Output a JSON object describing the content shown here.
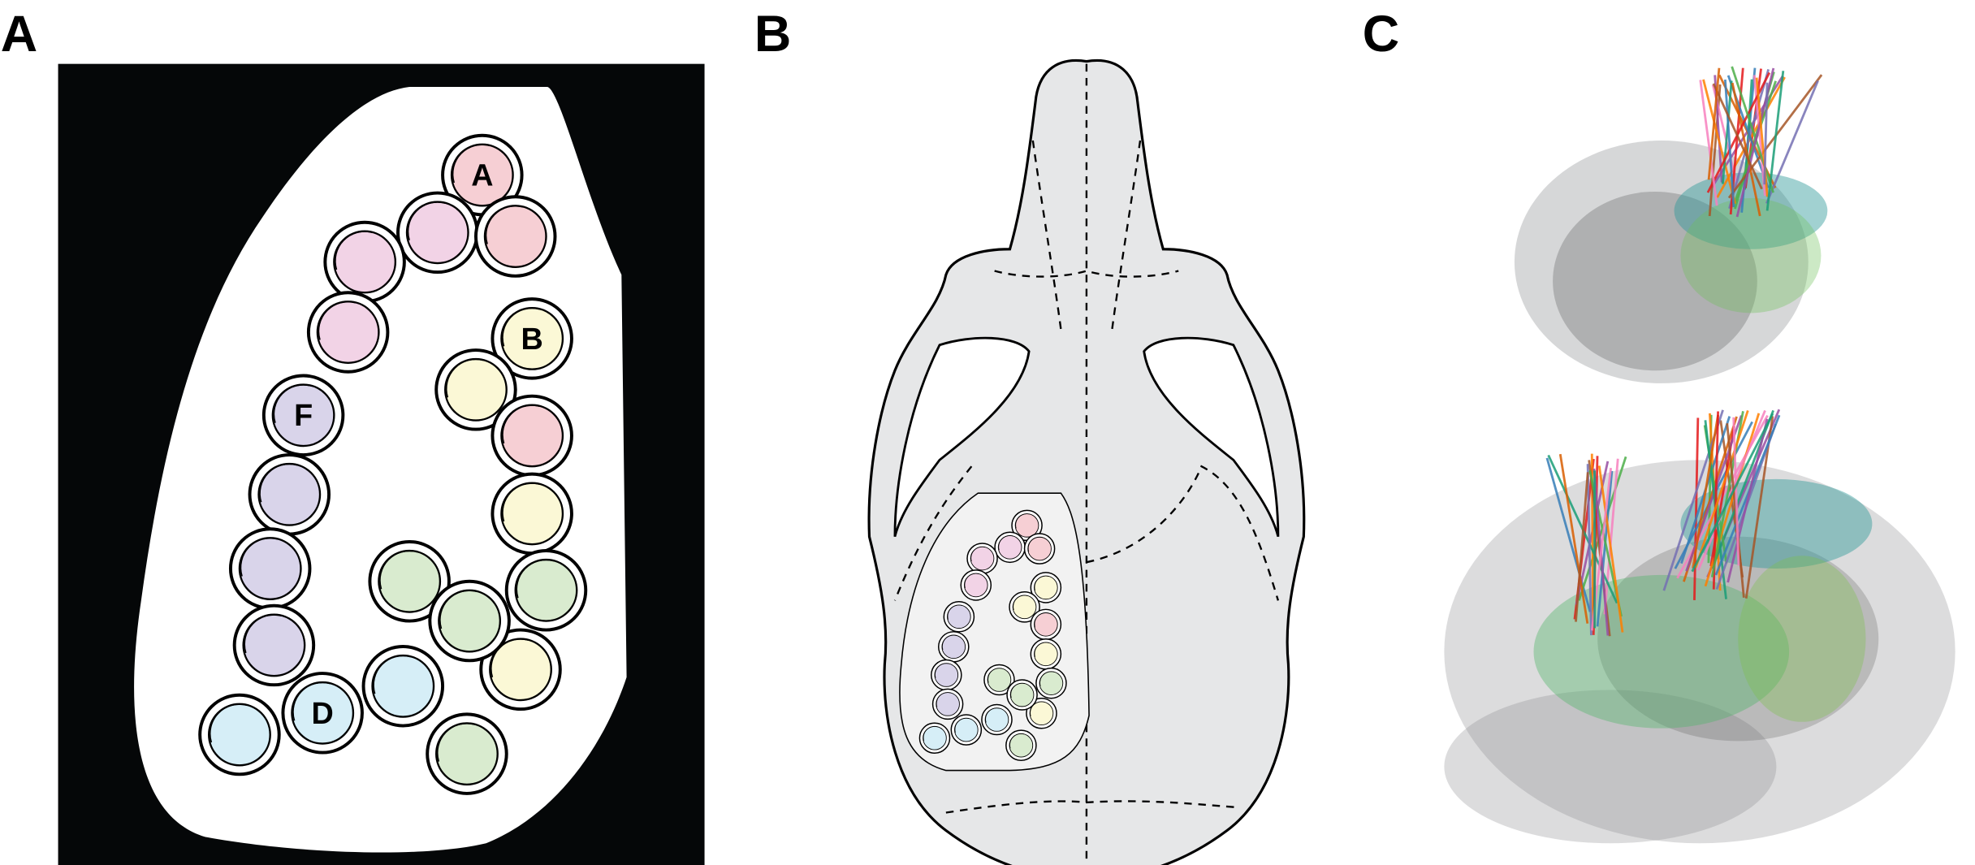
{
  "panels": [
    {
      "label": "A",
      "wells": [
        "A",
        "B",
        "F",
        "D"
      ]
    },
    {
      "label": "B"
    },
    {
      "label": "C"
    }
  ]
}
